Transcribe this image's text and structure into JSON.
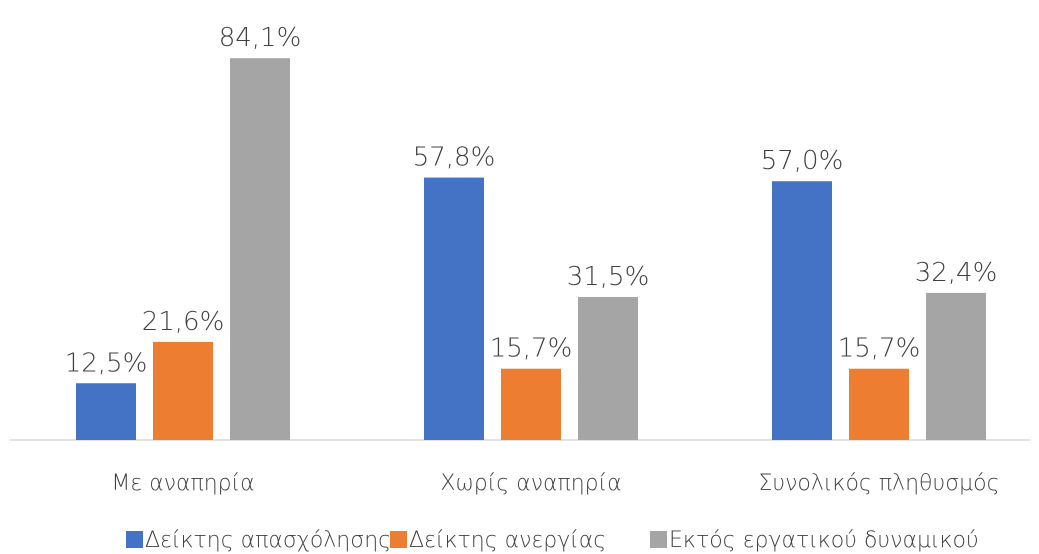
{
  "chart_data": {
    "type": "bar",
    "categories": [
      "Με αναπηρία",
      "Χωρίς αναπηρία",
      "Συνολικός πληθυσμός"
    ],
    "series": [
      {
        "name": "Δείκτης απασχόλησης",
        "color": "#4472c4",
        "values": [
          12.5,
          57.8,
          57.0
        ],
        "value_labels": [
          "12,5%",
          "57,8%",
          "57,0%"
        ]
      },
      {
        "name": "Δείκτης ανεργίας",
        "color": "#ed7d31",
        "values": [
          21.6,
          15.7,
          15.7
        ],
        "value_labels": [
          "21,6%",
          "15,7%",
          "15,7%"
        ]
      },
      {
        "name": "Εκτός εργατικού δυναμικού",
        "color": "#a5a5a5",
        "values": [
          84.1,
          31.5,
          32.4
        ],
        "value_labels": [
          "84,1%",
          "31,5%",
          "32,4%"
        ]
      }
    ],
    "legend": "bottom"
  }
}
